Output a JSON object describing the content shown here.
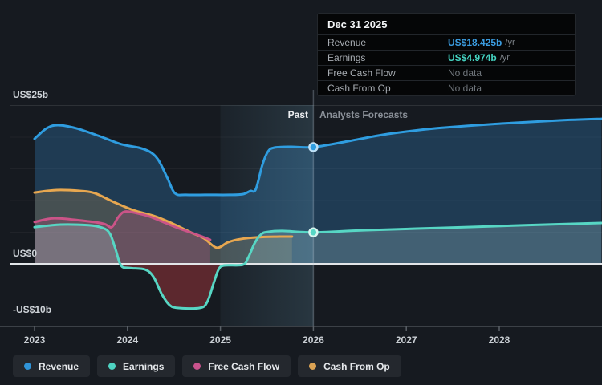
{
  "tooltip": {
    "title": "Dec 31 2025",
    "rows": [
      {
        "label": "Revenue",
        "value": "US$18.425b",
        "suffix": "/yr",
        "color": "#3b9ce0"
      },
      {
        "label": "Earnings",
        "value": "US$4.974b",
        "suffix": "/yr",
        "color": "#45d4c2"
      },
      {
        "label": "Free Cash Flow",
        "value": "No data",
        "suffix": "",
        "color": "#6f757b"
      },
      {
        "label": "Cash From Op",
        "value": "No data",
        "suffix": "",
        "color": "#6f757b"
      }
    ]
  },
  "phase": {
    "past_label": "Past",
    "forecast_label": "Analysts Forecasts"
  },
  "y_axis": {
    "top_label": "US$25b",
    "zero_label": "US$0",
    "bottom_label": "-US$10b"
  },
  "legend": {
    "items": [
      {
        "label": "Revenue",
        "color": "#3094d8"
      },
      {
        "label": "Earnings",
        "color": "#4ed3c2"
      },
      {
        "label": "Free Cash Flow",
        "color": "#c9538d"
      },
      {
        "label": "Cash From Op",
        "color": "#dba354"
      }
    ]
  },
  "chart_data": {
    "type": "area",
    "title": "Past and forecast Revenue, Earnings, Free Cash Flow and Cash From Op (US$ billions)",
    "x_ticks": [
      2023,
      2024,
      2025,
      2026,
      2027,
      2028
    ],
    "x_range": [
      2023,
      2029.1
    ],
    "ylim": [
      -10,
      27.8
    ],
    "y_unit": "US$ billions",
    "y_gridline_values": [
      25,
      20,
      15,
      10,
      5
    ],
    "zero_line": 0,
    "divider_year": 2026,
    "highlight_band": {
      "from": 2025,
      "to": 2026
    },
    "grid": true,
    "legend_position": "bottom",
    "series": [
      {
        "name": "Revenue",
        "color": "#2f9de0",
        "fill": "rgba(52,128,188,0.33)",
        "marker_ring": "#bfe0f5",
        "past": [
          [
            2023.0,
            19.75
          ],
          [
            2023.13,
            21.4
          ],
          [
            2023.25,
            21.9
          ],
          [
            2023.45,
            21.4
          ],
          [
            2023.71,
            20.1
          ],
          [
            2023.93,
            18.9
          ],
          [
            2024.12,
            18.35
          ],
          [
            2024.24,
            17.7
          ],
          [
            2024.33,
            16.45
          ],
          [
            2024.43,
            13.55
          ],
          [
            2024.51,
            11.15
          ],
          [
            2024.63,
            10.9
          ],
          [
            2024.87,
            10.9
          ],
          [
            2025.1,
            10.9
          ],
          [
            2025.24,
            11.0
          ],
          [
            2025.32,
            11.5
          ],
          [
            2025.38,
            11.75
          ],
          [
            2025.45,
            15.55
          ],
          [
            2025.51,
            17.7
          ],
          [
            2025.58,
            18.35
          ],
          [
            2025.76,
            18.48
          ],
          [
            2026.0,
            18.425
          ]
        ],
        "forecast": [
          [
            2026.37,
            19.35
          ],
          [
            2026.8,
            20.5
          ],
          [
            2027.32,
            21.4
          ],
          [
            2028.02,
            22.15
          ],
          [
            2028.63,
            22.65
          ],
          [
            2029.1,
            22.9
          ]
        ]
      },
      {
        "name": "Cash From Op",
        "color": "#e7a750",
        "fill": "rgba(231,167,80,0.20)",
        "past": [
          [
            2023.0,
            11.25
          ],
          [
            2023.24,
            11.65
          ],
          [
            2023.5,
            11.5
          ],
          [
            2023.65,
            11.15
          ],
          [
            2023.84,
            9.85
          ],
          [
            2024.06,
            8.5
          ],
          [
            2024.28,
            7.6
          ],
          [
            2024.45,
            6.6
          ],
          [
            2024.67,
            5.05
          ],
          [
            2024.82,
            4.05
          ],
          [
            2024.96,
            2.55
          ],
          [
            2025.08,
            3.4
          ],
          [
            2025.21,
            3.9
          ],
          [
            2025.41,
            4.2
          ],
          [
            2025.63,
            4.3
          ],
          [
            2025.77,
            4.3
          ]
        ],
        "forecast": []
      },
      {
        "name": "Free Cash Flow",
        "color": "#cb5488",
        "fill": "rgba(203,84,136,0.25)",
        "past": [
          [
            2023.0,
            6.6
          ],
          [
            2023.21,
            7.2
          ],
          [
            2023.5,
            6.85
          ],
          [
            2023.74,
            6.35
          ],
          [
            2023.83,
            5.8
          ],
          [
            2023.9,
            7.35
          ],
          [
            2023.97,
            8.25
          ],
          [
            2024.1,
            8.0
          ],
          [
            2024.24,
            7.45
          ],
          [
            2024.41,
            6.45
          ],
          [
            2024.58,
            5.45
          ],
          [
            2024.76,
            4.55
          ],
          [
            2024.89,
            3.8
          ]
        ],
        "forecast": []
      },
      {
        "name": "Earnings",
        "color": "#57d6c4",
        "fill": "rgba(165,205,210,0.26)",
        "neg_fill": "rgba(178,58,64,0.45)",
        "marker_ring": "#d9f6f0",
        "past": [
          [
            2023.0,
            5.8
          ],
          [
            2023.28,
            6.2
          ],
          [
            2023.58,
            6.1
          ],
          [
            2023.73,
            5.7
          ],
          [
            2023.81,
            4.8
          ],
          [
            2023.87,
            2.4
          ],
          [
            2023.93,
            -0.25
          ],
          [
            2024.02,
            -0.65
          ],
          [
            2024.19,
            -0.9
          ],
          [
            2024.28,
            -2.05
          ],
          [
            2024.37,
            -4.8
          ],
          [
            2024.45,
            -6.45
          ],
          [
            2024.54,
            -6.95
          ],
          [
            2024.78,
            -6.95
          ],
          [
            2024.86,
            -5.95
          ],
          [
            2024.93,
            -2.9
          ],
          [
            2024.98,
            -0.9
          ],
          [
            2025.04,
            -0.25
          ],
          [
            2025.24,
            -0.15
          ],
          [
            2025.3,
            1.0
          ],
          [
            2025.37,
            3.3
          ],
          [
            2025.44,
            4.7
          ],
          [
            2025.51,
            5.05
          ],
          [
            2025.67,
            5.2
          ],
          [
            2026.0,
            4.974
          ]
        ],
        "forecast": [
          [
            2026.54,
            5.3
          ],
          [
            2027.41,
            5.7
          ],
          [
            2028.28,
            6.1
          ],
          [
            2029.1,
            6.45
          ]
        ]
      }
    ],
    "markers": [
      {
        "series": "Revenue",
        "year": 2026,
        "value": 18.425
      },
      {
        "series": "Earnings",
        "year": 2026,
        "value": 4.974
      }
    ]
  }
}
